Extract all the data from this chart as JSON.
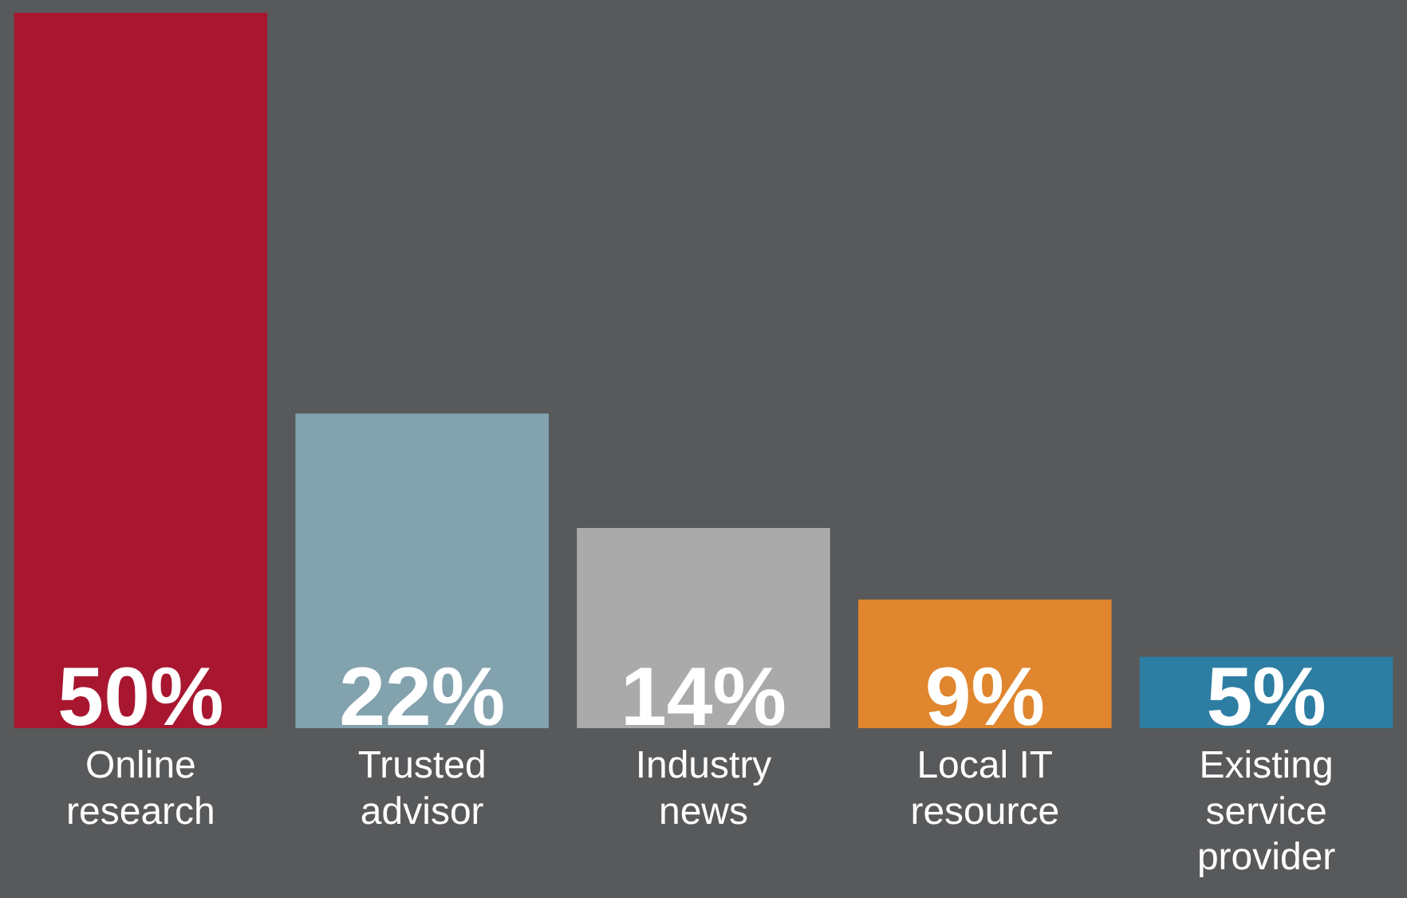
{
  "chart_data": {
    "type": "bar",
    "categories": [
      "Online research",
      "Trusted advisor",
      "Industry news",
      "Local IT resource",
      "Existing service provider"
    ],
    "values": [
      50,
      22,
      14,
      9,
      5
    ],
    "colors": [
      "#a8172f",
      "#82a2ae",
      "#aaaaaa",
      "#e0862e",
      "#2e7ea3"
    ],
    "value_labels": [
      "50%",
      "22%",
      "14%",
      "9%",
      "5%"
    ],
    "ylim": [
      0,
      50
    ],
    "tick_labels": "x",
    "grid": false,
    "legend": false
  }
}
